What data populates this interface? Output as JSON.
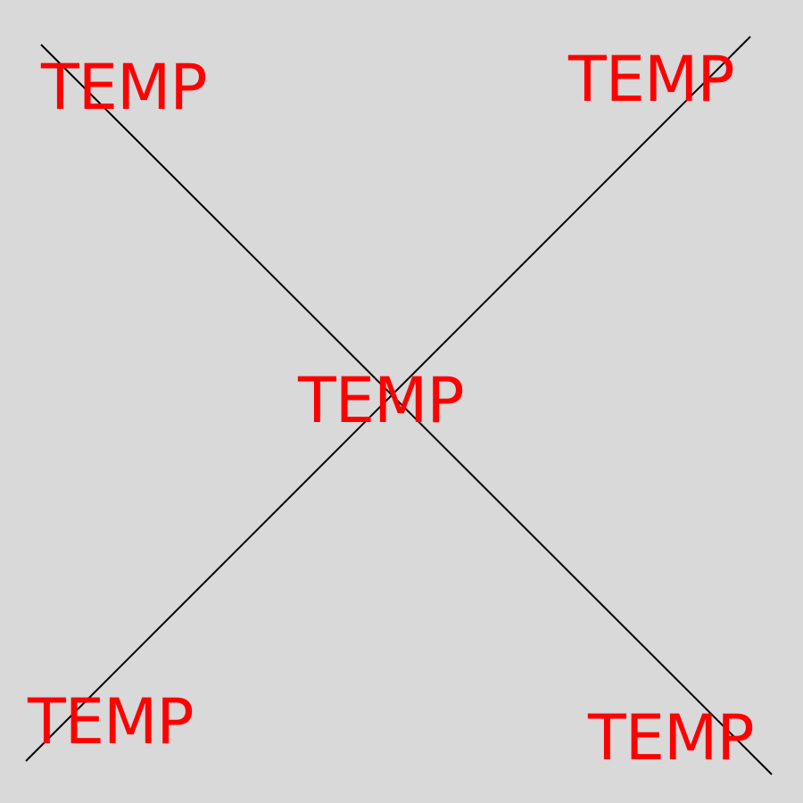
{
  "canvas": {
    "background_color": "#d9d9d9"
  },
  "colors": {
    "label": "#ff0000",
    "line": "#000000"
  },
  "labels": {
    "top_left": "TEMP",
    "top_right": "TEMP",
    "center": "TEMP",
    "bottom_left": "TEMP",
    "bottom_right": "TEMP"
  }
}
